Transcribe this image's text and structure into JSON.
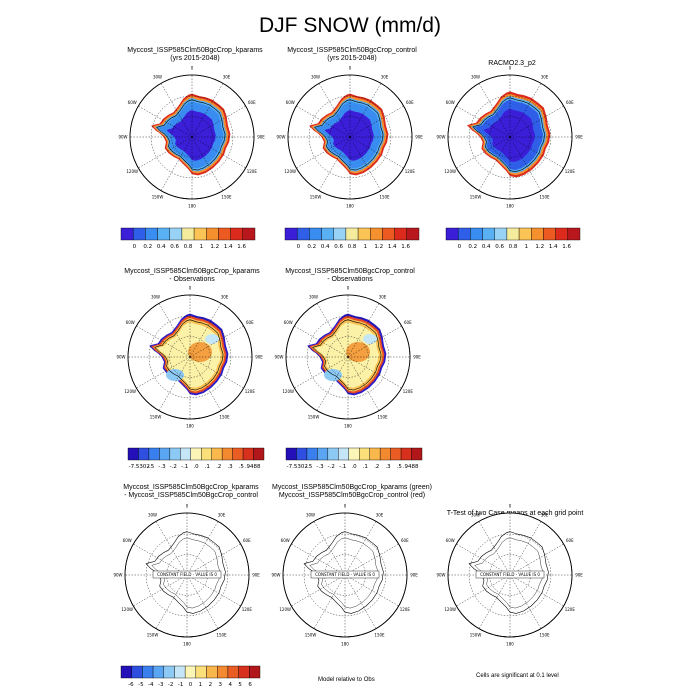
{
  "title": "DJF SNOW (mm/d)",
  "panels": [
    {
      "id": "p1",
      "t1": "Myccost_ISSP585Clm50BgcCrop_kparams",
      "t2": "(yrs 2015-2048)",
      "kind": "snow"
    },
    {
      "id": "p2",
      "t1": "Myccost_ISSP585Clm50BgcCrop_control",
      "t2": "(yrs 2015-2048)",
      "kind": "snow"
    },
    {
      "id": "p3",
      "t1": "RACMO2.3_p2",
      "t2": "",
      "kind": "snow2"
    },
    {
      "id": "p4",
      "t1": "Myccost_ISSP585Clm50BgcCrop_kparams",
      "t2": "- Observations",
      "kind": "diff"
    },
    {
      "id": "p5",
      "t1": "Myccost_ISSP585Clm50BgcCrop_control",
      "t2": "- Observations",
      "kind": "diff"
    },
    {
      "id": "p7",
      "t1": "Myccost_ISSP585Clm50BgcCrop_kparams",
      "t2": "- Myccost_ISSP585Clm50BgcCrop_control",
      "kind": "const"
    },
    {
      "id": "p8",
      "t1": "Myccost_ISSP585Clm50BgcCrop_kparams (green)",
      "t2": "Myccost_ISSP585Clm50BgcCrop_control (red)",
      "kind": "const"
    },
    {
      "id": "p9",
      "t1": "T-Test of two Case means at each grid point",
      "t2": "",
      "kind": "const"
    }
  ],
  "longitude_labels": [
    "0",
    "30E",
    "60E",
    "90E",
    "120E",
    "150E",
    "180",
    "150W",
    "120W",
    "90W",
    "60W",
    "30W"
  ],
  "constant_field_label": "CONSTANT FIELD - VALUE IS 0",
  "colorbars": {
    "snow": {
      "colors": [
        "#3a1ed8",
        "#2f5fe8",
        "#3a8df0",
        "#59b0f2",
        "#98d3f5",
        "#f4ec9c",
        "#fbc455",
        "#f5902e",
        "#ec5a22",
        "#dc2b1d",
        "#b8171e"
      ],
      "labels": [
        "0",
        "0.2",
        "0.4",
        "0.6",
        "0.8",
        "1",
        "1.2",
        "1.4",
        "1.6"
      ]
    },
    "diff": {
      "colors": [
        "#2410b8",
        "#2f4fe0",
        "#3a7fee",
        "#5aa6f2",
        "#8ccaf5",
        "#c4e6f7",
        "#fbf6b8",
        "#fbe07a",
        "#f9b74c",
        "#f48a30",
        "#e95c24",
        "#d7301c",
        "#b0161a"
      ],
      "labels": [
        "-7.5302",
        "-.5",
        "-.3",
        "-.2",
        "-.1",
        ".0",
        ".1",
        ".2",
        ".3",
        ".5",
        ".9488"
      ]
    },
    "bottom": {
      "colors": [
        "#2410b8",
        "#2f4fe0",
        "#3a7fee",
        "#5aa6f2",
        "#8ccaf5",
        "#c4e6f7",
        "#fbf6b8",
        "#fbe07a",
        "#f9b74c",
        "#f48a30",
        "#e95c24",
        "#d7301c",
        "#b0161a"
      ],
      "labels": [
        "-6",
        "-5",
        "-4",
        "-3",
        "-2",
        "-1",
        "0",
        "1",
        "2",
        "3",
        "4",
        "5",
        "6"
      ]
    }
  },
  "footer": {
    "model_rel": "Model relative to Obs",
    "cells_sig": "Cells are significant at 0.1 level"
  }
}
